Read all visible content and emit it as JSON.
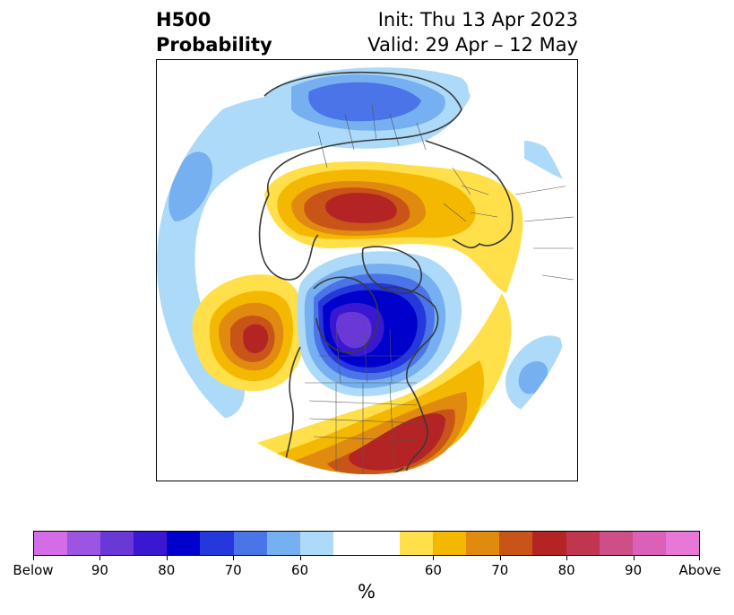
{
  "title": {
    "line1_left": "H500",
    "line2_left": "Probability",
    "line1_right": "Init: Thu 13 Apr 2023",
    "line2_right": "Valid: 29 Apr – 12 May"
  },
  "colors": {
    "coast": "#3a3a3a",
    "border": "#555555"
  },
  "colorbar": {
    "unit": "%",
    "segments": [
      "#d46ce8",
      "#9b55e0",
      "#6b38d8",
      "#3a18d2",
      "#0000cc",
      "#2438dc",
      "#4a74e8",
      "#76b0f0",
      "#acdaf8",
      "#ffffff",
      "#ffffff",
      "#ffe04a",
      "#f5b800",
      "#e08a10",
      "#c85418",
      "#b42424",
      "#c03550",
      "#cc4f88",
      "#da60b8",
      "#e878d8"
    ],
    "ticks": [
      {
        "label": "Below",
        "index": 0
      },
      {
        "label": "90",
        "index": 2
      },
      {
        "label": "80",
        "index": 4
      },
      {
        "label": "70",
        "index": 6
      },
      {
        "label": "60",
        "index": 8
      },
      {
        "label": "60",
        "index": 12
      },
      {
        "label": "70",
        "index": 14
      },
      {
        "label": "80",
        "index": 16
      },
      {
        "label": "90",
        "index": 18
      },
      {
        "label": "Above",
        "index": 20
      }
    ]
  }
}
